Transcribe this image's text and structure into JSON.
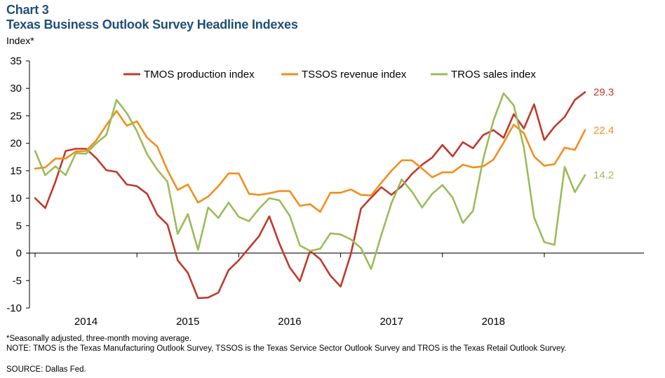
{
  "chart_data": {
    "type": "line",
    "label": "Chart 3",
    "title": "Texas Business Outlook Survey Headline Indexes",
    "ylabel": "Index*",
    "xlabel": "",
    "ylim": [
      -10,
      35
    ],
    "yticks": [
      "35",
      "30",
      "25",
      "20",
      "15",
      "10",
      "5",
      "0",
      "-5",
      "-10"
    ],
    "ytick_values": [
      35,
      30,
      25,
      20,
      15,
      10,
      5,
      0,
      -5,
      -10
    ],
    "x_ticks": [
      {
        "label": "2014",
        "index": 5
      },
      {
        "label": "2015",
        "index": 15
      },
      {
        "label": "2016",
        "index": 25
      },
      {
        "label": "2017",
        "index": 35
      },
      {
        "label": "2018",
        "index": 45
      }
    ],
    "legend_position": "top",
    "series": [
      {
        "name": "TMOS production index",
        "color": "#c0392b",
        "end_label": "29.3",
        "values": [
          10,
          8.2,
          13,
          18.6,
          19,
          19,
          17.3,
          15.1,
          14.8,
          12.5,
          12.2,
          10.8,
          7,
          5.2,
          -1.3,
          -3.6,
          -8.2,
          -8.1,
          -7.2,
          -3.1,
          -1.3,
          0.9,
          3.1,
          6.7,
          1.7,
          -2.6,
          -5.1,
          0.4,
          -1.1,
          -4.1,
          -6.1,
          -0.2,
          8.1,
          10.1,
          12,
          10.6,
          12.2,
          14.4,
          16.1,
          17.4,
          19.7,
          17.6,
          20.2,
          19.1,
          21.5,
          22.4,
          21,
          25.3,
          22.7,
          27.1,
          20.6,
          23,
          24.8,
          27.9,
          29.3
        ]
      },
      {
        "name": "TSSOS revenue index",
        "color": "#f28e1c",
        "end_label": "22.4",
        "values": [
          15.4,
          15.6,
          17.2,
          17.2,
          18.5,
          18.6,
          20.5,
          23.3,
          25.9,
          23.2,
          24,
          21,
          19.4,
          15.1,
          11.5,
          12.5,
          9.2,
          10.3,
          12.2,
          14.5,
          14.5,
          10.8,
          10.6,
          10.9,
          11.3,
          11.3,
          8.6,
          8.9,
          7.5,
          11,
          11,
          11.6,
          10.6,
          10.5,
          12.8,
          15,
          16.9,
          16.9,
          15.4,
          13.8,
          14.7,
          14.7,
          16.1,
          15.6,
          15.8,
          17,
          20.1,
          23.4,
          21.8,
          17.6,
          15.9,
          16.2,
          19.2,
          18.8,
          22.4
        ]
      },
      {
        "name": "TROS sales index",
        "color": "#9bbb59",
        "end_label": "14.2",
        "values": [
          18.6,
          14.2,
          15.8,
          14.2,
          18.2,
          18.1,
          20,
          21.5,
          27.9,
          25.5,
          22.2,
          18,
          15.2,
          13,
          3.5,
          7.1,
          0.6,
          8.3,
          6.4,
          9.2,
          6.6,
          5.8,
          8.1,
          10,
          9.6,
          6.8,
          1.4,
          0.4,
          0.8,
          3.6,
          3.4,
          2.5,
          0.9,
          -2.9,
          3.3,
          9.1,
          13.4,
          11.2,
          8.3,
          10.8,
          12.4,
          10.1,
          5.5,
          7.7,
          17.1,
          24.1,
          29.1,
          26.9,
          19.2,
          6.5,
          2,
          1.5,
          15.7,
          11.1,
          14.2
        ]
      }
    ]
  },
  "notes": {
    "footnote": "*Seasonally adjusted, three-month moving average.",
    "note": "NOTE: TMOS is the Texas Manufacturing Outlook Survey, TSSOS is the Texas Service Sector Outlook Survey and TROS is the Texas Retail Outlook Survey.",
    "source": "SOURCE: Dallas Fed."
  },
  "colors": {
    "title": "#1f4e79",
    "axis": "#000000"
  }
}
